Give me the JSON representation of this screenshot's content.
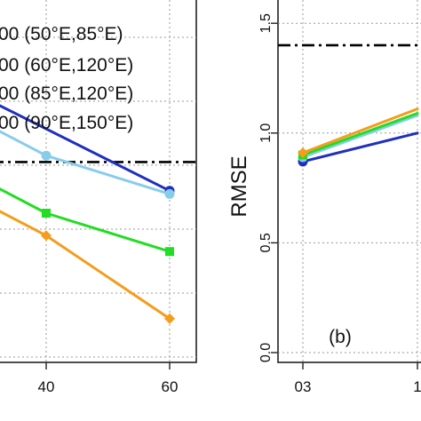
{
  "chart_data": [
    {
      "type": "line",
      "panel": "a",
      "x": [
        40,
        60
      ],
      "xticks": [
        "40",
        "60"
      ],
      "series": [
        {
          "values": [
            null,
            0.62
          ],
          "color": "#1f2fbf",
          "marker": "circle"
        },
        {
          "values": [
            0.73,
            0.61
          ],
          "color": "#87cdea",
          "marker": "circle"
        },
        {
          "values": [
            0.55,
            0.43
          ],
          "color": "#22dd22",
          "marker": "square"
        },
        {
          "values": [
            0.48,
            0.22
          ],
          "color": "#f59c1a",
          "marker": "diamond"
        }
      ],
      "reference_line": {
        "value": 0.71,
        "style": "dot-dash",
        "color": "#000000"
      },
      "legend": {
        "placement": "top-left",
        "entries": [
          "00 (50°E,85°E)",
          "00 (60°E,120°E)",
          "00 (85°E,120°E)",
          "00 (90°E,150°E)"
        ]
      },
      "grid": true
    },
    {
      "type": "line",
      "panel": "b",
      "panel_label": "(b)",
      "ylabel": "RMSE",
      "ylim": [
        0,
        1.6
      ],
      "yticks": [
        "0.0",
        "0.5",
        "1.0",
        "1.5"
      ],
      "xticks": [
        "03",
        "1"
      ],
      "series": [
        {
          "values": [
            0.87,
            1.0
          ],
          "color": "#1f2fbf",
          "marker": "circle"
        },
        {
          "values": [
            0.89,
            1.08
          ],
          "color": "#87cdea",
          "marker": "circle"
        },
        {
          "values": [
            0.9,
            1.09
          ],
          "color": "#22dd22",
          "marker": "square"
        },
        {
          "values": [
            0.91,
            1.11
          ],
          "color": "#f59c1a",
          "marker": "diamond"
        }
      ],
      "reference_line": {
        "value": 1.4,
        "style": "dot-dash",
        "color": "#000000"
      },
      "grid": true
    }
  ]
}
